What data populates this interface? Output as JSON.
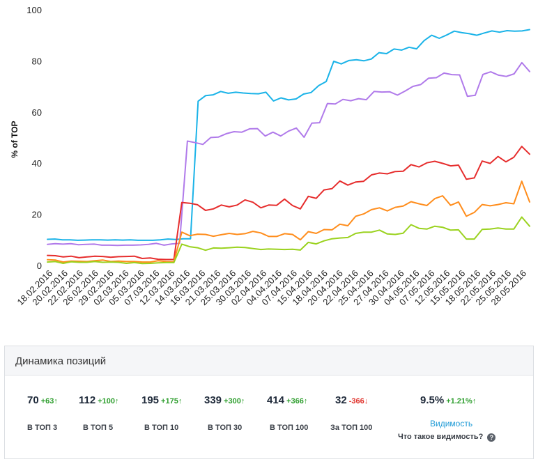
{
  "chart_data": {
    "type": "line",
    "ylabel": "% of TOP",
    "ylim": [
      0,
      100
    ],
    "yticks": [
      0,
      20,
      40,
      60,
      80,
      100
    ],
    "xtick_labels": [
      "18.02.2016",
      "20.02.2016",
      "22.02.2016",
      "26.02.2016",
      "29.02.2016",
      "02.03.2016",
      "05.03.2016",
      "07.03.2016",
      "12.03.2016",
      "14.03.2016",
      "16.03.2016",
      "21.03.2016",
      "25.03.2016",
      "30.03.2016",
      "02.04.2016",
      "04.04.2016",
      "07.04.2016",
      "15.04.2016",
      "18.04.2016",
      "20.04.2016",
      "22.04.2016",
      "25.04.2016",
      "27.04.2016",
      "30.04.2016",
      "04.05.2016",
      "07.05.2016",
      "12.05.2016",
      "15.05.2016",
      "18.05.2016",
      "22.05.2016",
      "25.05.2016",
      "28.05.2016"
    ],
    "grid": false,
    "legend": "none",
    "series": [
      {
        "color": "#1ab3e8",
        "values": [
          10.5,
          10.6,
          10.3,
          10.3,
          10.1,
          10.2,
          10.3,
          10.3,
          10.2,
          10.3,
          10.2,
          10.3,
          10.1,
          10.1,
          10.1,
          10.3,
          10.6,
          10.4,
          10.7,
          10.7,
          64.5,
          66.7,
          67.0,
          68.3,
          67.6,
          68.0,
          67.7,
          67.5,
          67.4,
          68.0,
          64.6,
          65.8,
          65.0,
          65.4,
          67.3,
          67.9,
          70.6,
          72.2,
          80.1,
          79.1,
          80.4,
          80.7,
          80.3,
          81.0,
          83.5,
          83.1,
          84.9,
          84.5,
          85.6,
          85.0,
          88.2,
          90.3,
          89.1,
          90.4,
          91.9,
          91.3,
          90.9,
          90.3,
          91.2,
          92.0,
          91.5,
          92.1,
          91.9,
          92.0,
          92.5
        ]
      },
      {
        "color": "#b07aea",
        "values": [
          8.5,
          8.8,
          8.6,
          8.8,
          8.4,
          8.5,
          8.6,
          8.2,
          8.2,
          8.1,
          8.2,
          8.2,
          8.3,
          8.5,
          8.9,
          8.2,
          8.7,
          8.9,
          48.9,
          48.3,
          47.6,
          50.3,
          50.5,
          51.8,
          52.6,
          52.4,
          53.7,
          53.8,
          50.9,
          52.4,
          50.9,
          52.8,
          54.0,
          50.4,
          55.9,
          56.1,
          63.6,
          63.4,
          65.2,
          64.7,
          65.5,
          65.1,
          68.3,
          68.1,
          68.2,
          66.9,
          68.5,
          70.3,
          71.0,
          73.5,
          73.7,
          75.5,
          74.9,
          74.8,
          66.4,
          66.8,
          75.0,
          76.0,
          74.7,
          74.2,
          75.2,
          79.6,
          76.1
        ]
      },
      {
        "color": "#e62d2d",
        "values": [
          4.2,
          4.1,
          3.6,
          3.9,
          3.3,
          3.6,
          3.9,
          3.8,
          3.5,
          3.7,
          3.8,
          3.9,
          3.0,
          3.2,
          2.7,
          2.6,
          2.6,
          24.9,
          24.6,
          24.0,
          21.8,
          22.4,
          23.9,
          23.2,
          23.9,
          25.9,
          25.0,
          22.8,
          23.9,
          23.8,
          26.2,
          23.7,
          22.4,
          27.3,
          26.5,
          29.8,
          30.3,
          33.3,
          31.7,
          32.9,
          33.2,
          35.7,
          36.4,
          36.1,
          37.0,
          37.1,
          39.7,
          38.8,
          40.4,
          41.0,
          40.2,
          39.2,
          39.5,
          34.0,
          34.5,
          41.1,
          40.2,
          42.9,
          40.8,
          42.6,
          46.8,
          43.8
        ]
      },
      {
        "color": "#ff8d1c",
        "values": [
          2.5,
          2.4,
          1.6,
          2.0,
          1.9,
          1.8,
          2.1,
          2.4,
          1.8,
          2.0,
          1.8,
          1.8,
          1.6,
          1.6,
          2.1,
          1.8,
          1.7,
          13.3,
          11.9,
          12.5,
          12.4,
          11.7,
          12.3,
          12.8,
          12.4,
          12.7,
          13.6,
          13.0,
          11.6,
          11.6,
          12.7,
          12.4,
          10.3,
          13.5,
          12.8,
          14.3,
          14.2,
          16.4,
          15.8,
          19.5,
          20.4,
          22.1,
          22.8,
          21.6,
          23.0,
          23.5,
          25.2,
          24.4,
          23.7,
          26.4,
          27.5,
          23.8,
          25.1,
          19.5,
          21.0,
          24.1,
          23.6,
          24.1,
          24.8,
          24.4,
          33.2,
          25.1
        ]
      },
      {
        "color": "#9ad21e",
        "values": [
          1.6,
          1.8,
          1.1,
          1.7,
          1.5,
          1.5,
          1.8,
          1.5,
          1.6,
          1.5,
          1.1,
          1.4,
          1.0,
          1.1,
          1.3,
          1.4,
          1.4,
          8.6,
          7.6,
          7.2,
          6.2,
          7.1,
          7.0,
          7.2,
          7.4,
          7.3,
          6.9,
          6.5,
          6.7,
          6.6,
          6.5,
          6.6,
          6.3,
          9.3,
          8.7,
          9.9,
          10.7,
          11.0,
          11.2,
          12.8,
          13.3,
          13.3,
          14.1,
          12.6,
          12.4,
          12.9,
          16.2,
          14.8,
          14.5,
          15.6,
          15.2,
          14.1,
          14.2,
          10.6,
          10.6,
          14.4,
          14.5,
          14.9,
          14.5,
          14.5,
          19.2,
          15.6
        ]
      }
    ]
  },
  "panel": {
    "title": "Динамика позиций",
    "stats": [
      {
        "value": "70",
        "delta": "+63",
        "dir": "up",
        "arrow": "↑",
        "label": "В ТОП 3"
      },
      {
        "value": "112",
        "delta": "+100",
        "dir": "up",
        "arrow": "↑",
        "label": "В ТОП 5"
      },
      {
        "value": "195",
        "delta": "+175",
        "dir": "up",
        "arrow": "↑",
        "label": "В ТОП 10"
      },
      {
        "value": "339",
        "delta": "+300",
        "dir": "up",
        "arrow": "↑",
        "label": "В ТОП 30"
      },
      {
        "value": "414",
        "delta": "+366",
        "dir": "up",
        "arrow": "↑",
        "label": "В ТОП 100"
      },
      {
        "value": "32",
        "delta": "-366",
        "dir": "down",
        "arrow": "↓",
        "label": "За ТОП 100"
      }
    ],
    "visibility": {
      "value": "9.5%",
      "delta": "+1.21%",
      "arrow": "↑",
      "link": "Видимость",
      "question": "Что такое видимость?",
      "help_icon": "?"
    }
  }
}
